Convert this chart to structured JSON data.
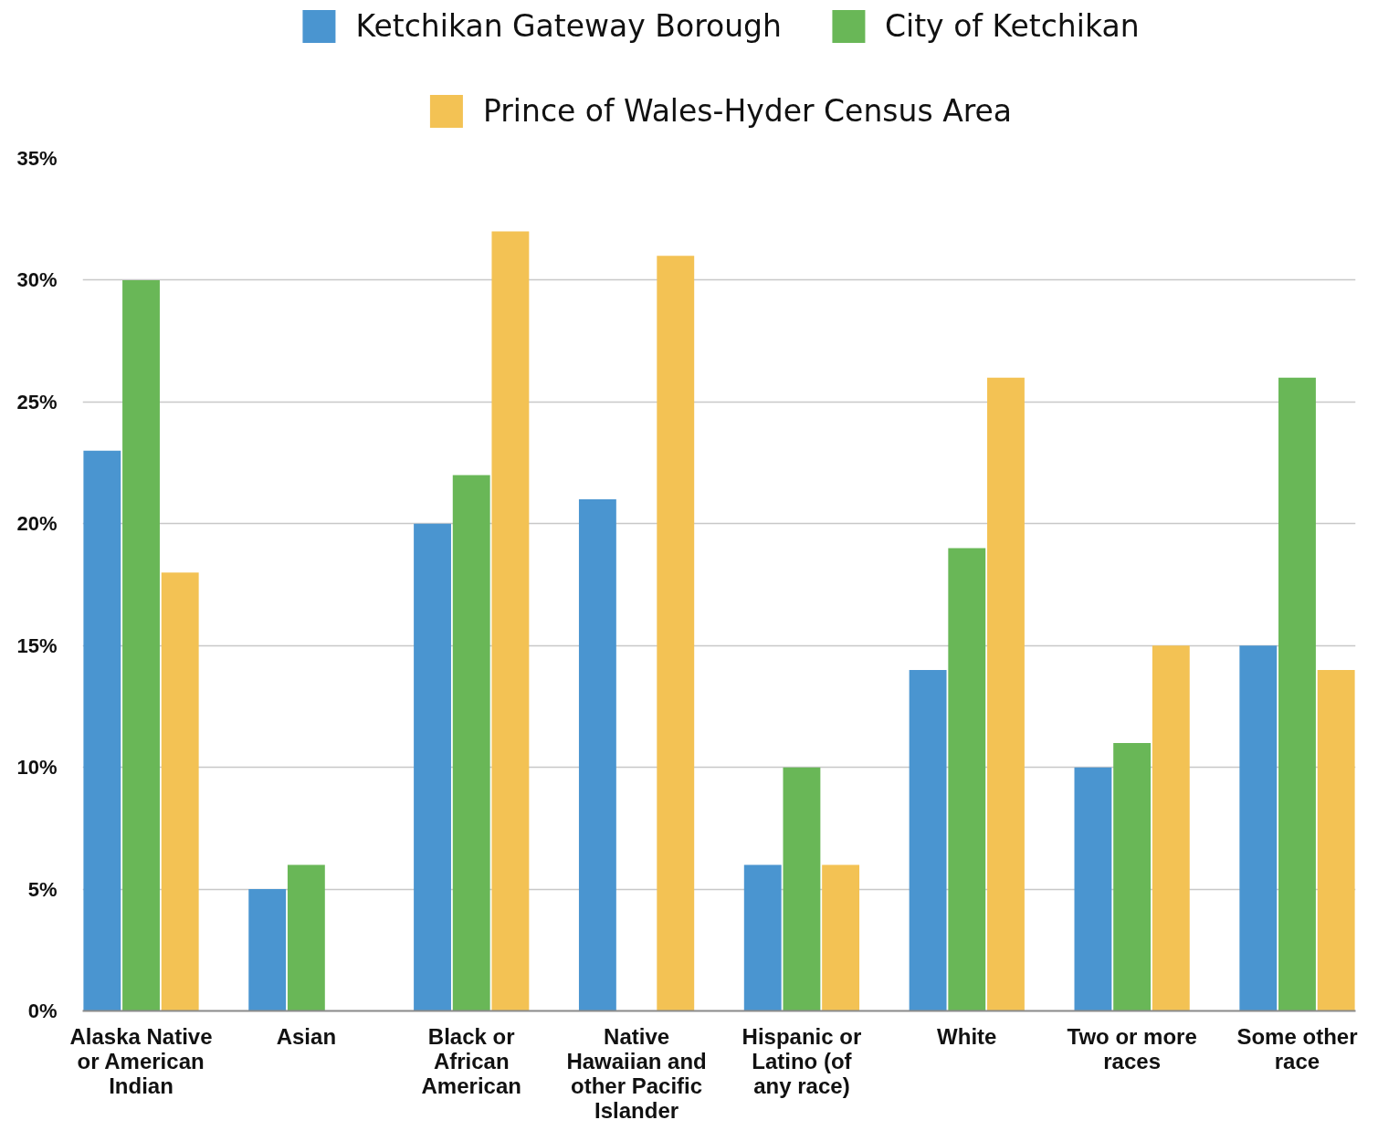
{
  "chart_data": {
    "type": "bar",
    "categories": [
      "Alaska Native or American Indian",
      "Asian",
      "Black or African American",
      "Native Hawaiian and other Pacific Islander",
      "Hispanic or Latino (of any race)",
      "White",
      "Two or more races",
      "Some other race"
    ],
    "series": [
      {
        "name": "Ketchikan Gateway Borough",
        "color": "#4a95d0",
        "values": [
          23,
          5,
          20,
          21,
          6,
          14,
          10,
          15
        ]
      },
      {
        "name": "City of Ketchikan",
        "color": "#69b757",
        "values": [
          30,
          6,
          22,
          null,
          10,
          19,
          11,
          26
        ]
      },
      {
        "name": "Prince of Wales-Hyder Census Area",
        "color": "#f3c254",
        "values": [
          18,
          null,
          32,
          31,
          6,
          26,
          15,
          14
        ]
      }
    ],
    "ylim": [
      0,
      35
    ],
    "yticks": [
      {
        "value": 0,
        "label": "0%"
      },
      {
        "value": 5,
        "label": "5%"
      },
      {
        "value": 10,
        "label": "10%"
      },
      {
        "value": 15,
        "label": "15%"
      },
      {
        "value": 20,
        "label": "20%"
      },
      {
        "value": 25,
        "label": "25%"
      },
      {
        "value": 30,
        "label": "30%"
      },
      {
        "value": 35,
        "label": "35%"
      }
    ],
    "grid": "y",
    "legend": "top"
  }
}
